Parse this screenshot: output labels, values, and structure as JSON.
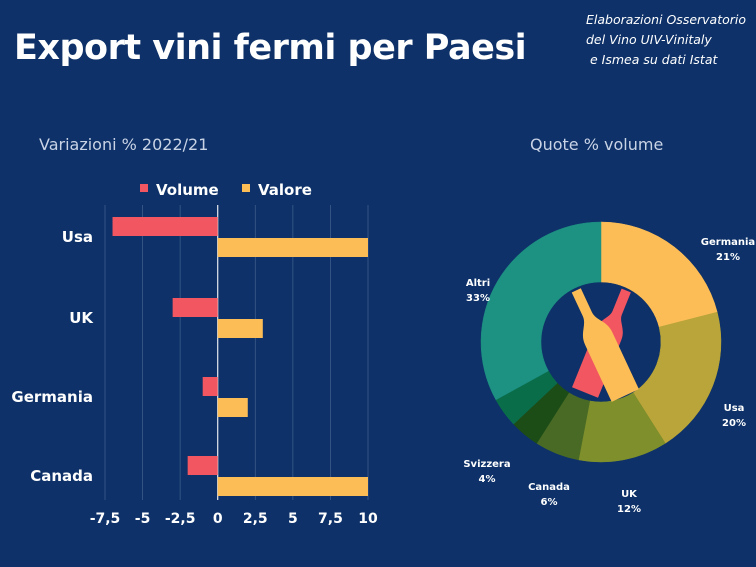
{
  "header": {
    "title": "Export vini fermi per Paesi",
    "source_lines": [
      "Elaborazioni Osservatorio",
      "del Vino UIV-Vinitaly",
      "e Ismea su dati Istat"
    ]
  },
  "colors": {
    "background": "#0d3168",
    "volume": "#f25660",
    "valore": "#fcbd57"
  },
  "chart_data": [
    {
      "type": "bar",
      "orientation": "horizontal",
      "title": "Variazioni % 2022/21",
      "categories": [
        "Usa",
        "UK",
        "Germania",
        "Canada"
      ],
      "series": [
        {
          "name": "Volume",
          "color": "#f25660",
          "values": [
            -7,
            -3,
            -1,
            -2
          ]
        },
        {
          "name": "Valore",
          "color": "#fcbd57",
          "values": [
            10,
            3,
            2,
            10
          ]
        }
      ],
      "xlim": [
        -7.5,
        10
      ],
      "xticks": [
        "-7,5",
        "-5",
        "-2,5",
        "0",
        "2,5",
        "5",
        "7,5",
        "10"
      ],
      "legend": "top",
      "grid": true
    },
    {
      "type": "pie",
      "variant": "donut",
      "title": "Quote % volume",
      "slices": [
        {
          "name": "Germania",
          "value": 21,
          "label": "21%",
          "color": "#fcbd57"
        },
        {
          "name": "Usa",
          "value": 20,
          "label": "20%",
          "color": "#b9a539"
        },
        {
          "name": "UK",
          "value": 12,
          "label": "12%",
          "color": "#7e8f2c"
        },
        {
          "name": "Canada",
          "value": 6,
          "label": "6%",
          "color": "#496a24"
        },
        {
          "name": "",
          "value": 4,
          "label": "",
          "color": "#1d4d17"
        },
        {
          "name": "Svizzera",
          "value": 4,
          "label": "4%",
          "color": "#0a6d4a"
        },
        {
          "name": "Altri",
          "value": 33,
          "label": "33%",
          "color": "#1d9182"
        }
      ]
    }
  ]
}
